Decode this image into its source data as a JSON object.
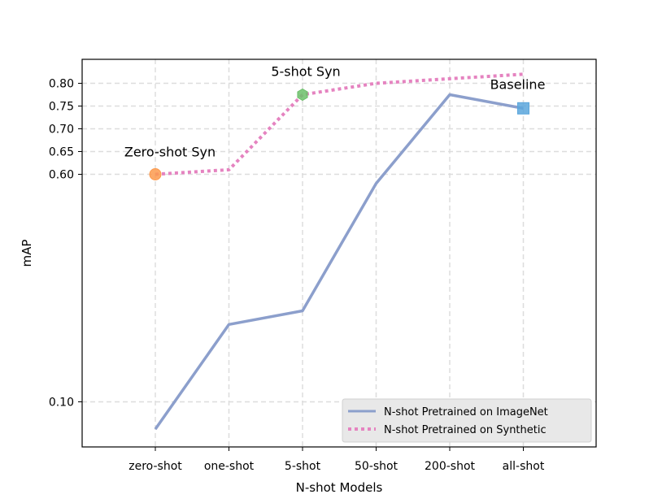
{
  "chart_data": {
    "type": "line",
    "title": "",
    "xlabel": "N-shot Models",
    "ylabel": "mAP",
    "categories": [
      "zero-shot",
      "one-shot",
      "5-shot",
      "50-shot",
      "200-shot",
      "all-shot"
    ],
    "y_ticks": [
      0.1,
      0.6,
      0.65,
      0.7,
      0.75,
      0.8
    ],
    "y_tick_labels": [
      "0.10",
      "0.60",
      "0.65",
      "0.70",
      "0.75",
      "0.80"
    ],
    "ylim": [
      0.0,
      0.885
    ],
    "grid": true,
    "legend_position": "lower-right",
    "series": [
      {
        "name": "N-shot Pretrained on ImageNet",
        "values": [
          0.04,
          0.27,
          0.3,
          0.58,
          0.775,
          0.745
        ],
        "color": "#8c9fcc",
        "style": "solid"
      },
      {
        "name": "N-shot Pretrained on Synthetic",
        "values": [
          0.6,
          0.61,
          0.775,
          0.8,
          0.81,
          0.82
        ],
        "color": "#e583c0",
        "style": "dotted"
      }
    ],
    "annotations": [
      {
        "text": "Zero-shot Syn",
        "category": "zero-shot",
        "value": 0.6,
        "marker": "circle",
        "color": "#fc9a4d"
      },
      {
        "text": "5-shot Syn",
        "category": "5-shot",
        "value": 0.775,
        "marker": "hexagon",
        "color": "#6cbf6a"
      },
      {
        "text": "Baseline",
        "category": "all-shot",
        "value": 0.745,
        "marker": "square",
        "color": "#5aa6dc"
      }
    ]
  }
}
